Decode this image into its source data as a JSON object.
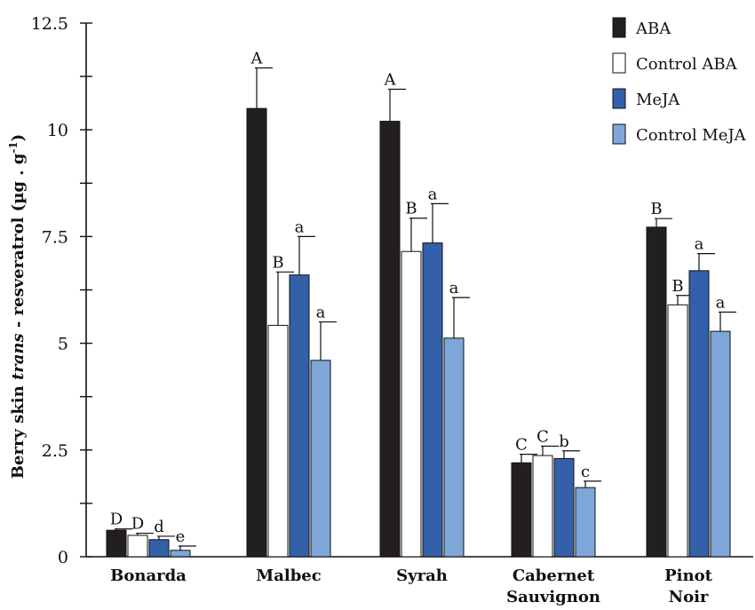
{
  "chart_data": {
    "type": "bar",
    "ylabel_parts": {
      "before": "Berry skin ",
      "italic": "trans",
      "after": " - resveratrol (µg . g",
      "sup": "-1",
      "close": ")"
    },
    "ylim": [
      0,
      12.5
    ],
    "yticks": [
      "0",
      "2.5",
      "5",
      "7.5",
      "10",
      "12.5"
    ],
    "categories": [
      [
        "Bonarda"
      ],
      [
        "Malbec"
      ],
      [
        "Syrah"
      ],
      [
        "Cabernet",
        "Sauvignon"
      ],
      [
        "Pinot",
        "Noir"
      ]
    ],
    "series": [
      {
        "name": "ABA",
        "color": "#231f20",
        "values": [
          0.62,
          10.5,
          10.2,
          2.2,
          7.72
        ],
        "errors": [
          0.03,
          0.95,
          0.75,
          0.2,
          0.2
        ],
        "labels": [
          "D",
          "A",
          "A",
          "C",
          "B"
        ]
      },
      {
        "name": "Control ABA",
        "color": "#ffffff",
        "values": [
          0.5,
          5.42,
          7.15,
          2.37,
          5.9
        ],
        "errors": [
          0.05,
          1.25,
          0.78,
          0.22,
          0.22
        ],
        "labels": [
          "D",
          "B",
          "B",
          "C",
          "B"
        ]
      },
      {
        "name": "MeJA",
        "color": "#3360a9",
        "values": [
          0.4,
          6.6,
          7.35,
          2.3,
          6.7
        ],
        "errors": [
          0.08,
          0.9,
          0.92,
          0.18,
          0.4
        ],
        "labels": [
          "d",
          "a",
          "a",
          "b",
          "a"
        ]
      },
      {
        "name": "Control MeJA",
        "color": "#7fa6d8",
        "values": [
          0.15,
          4.6,
          5.12,
          1.62,
          5.28
        ],
        "errors": [
          0.1,
          0.9,
          0.95,
          0.15,
          0.45
        ],
        "labels": [
          "e",
          "a",
          "a",
          "c",
          "a"
        ]
      }
    ],
    "grid": false,
    "legend_position": "top-right"
  }
}
